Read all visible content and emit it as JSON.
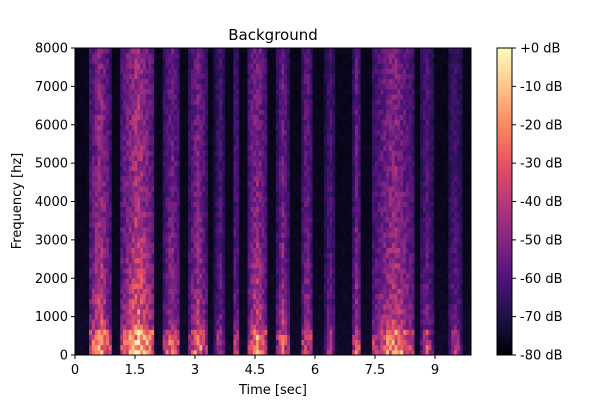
{
  "chart_data": {
    "type": "heatmap",
    "title": "Background",
    "xlabel": "Time [sec]",
    "ylabel": "Frequency [hz]",
    "xlim": [
      0,
      9.9
    ],
    "ylim": [
      0,
      8000
    ],
    "x_ticks": [
      0,
      1.5,
      3,
      4.5,
      6,
      7.5,
      9
    ],
    "x_tick_labels": [
      "0",
      "1.5",
      "3",
      "4.5",
      "6",
      "7.5",
      "9"
    ],
    "y_ticks": [
      0,
      1000,
      2000,
      3000,
      4000,
      5000,
      6000,
      7000,
      8000
    ],
    "y_tick_labels": [
      "0",
      "1000",
      "2000",
      "3000",
      "4000",
      "5000",
      "6000",
      "7000",
      "8000"
    ],
    "colorbar": {
      "colormap": "magma",
      "range_db": [
        -80,
        0
      ],
      "ticks": [
        0,
        -10,
        -20,
        -30,
        -40,
        -50,
        -60,
        -70,
        -80
      ],
      "tick_labels": [
        "+0 dB",
        "-10 dB",
        "-20 dB",
        "-30 dB",
        "-40 dB",
        "-50 dB",
        "-60 dB",
        "-70 dB",
        "-80 dB"
      ]
    },
    "colormap_stops": [
      "#000004",
      "#1d1147",
      "#51127c",
      "#832681",
      "#b73779",
      "#e75263",
      "#fc8961",
      "#fec488",
      "#fcfdbf"
    ]
  }
}
